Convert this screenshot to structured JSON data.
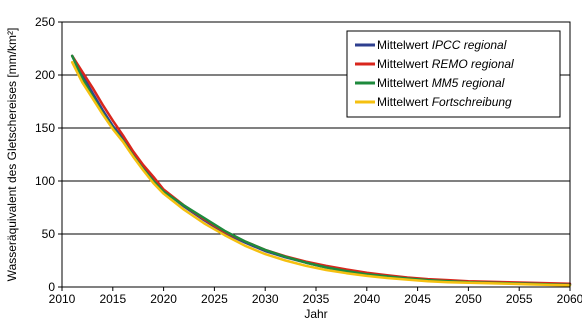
{
  "chart_data": {
    "type": "line",
    "xlabel": "Jahr",
    "ylabel": "Wasseräquivalent des Gletschereises [mm/km²]",
    "xlim": [
      2010,
      2060
    ],
    "ylim": [
      0,
      250
    ],
    "xticks": [
      2010,
      2015,
      2020,
      2025,
      2030,
      2035,
      2040,
      2045,
      2050,
      2055,
      2060
    ],
    "yticks": [
      0,
      50,
      100,
      150,
      200,
      250
    ],
    "grid": "horizontal",
    "legend": "top-right",
    "series": [
      {
        "name": "Mittelwert",
        "name_italic": "IPCC regional",
        "color": "#2e3f8f",
        "x": [
          2011,
          2012,
          2013,
          2014,
          2015,
          2016,
          2017,
          2018,
          2019,
          2020,
          2022,
          2024,
          2026,
          2028,
          2030,
          2032,
          2034,
          2036,
          2038,
          2040,
          2042,
          2044,
          2046,
          2048,
          2050,
          2052,
          2054,
          2056,
          2058,
          2060
        ],
        "y": [
          218,
          200,
          183,
          167,
          152,
          140,
          126,
          113,
          101,
          91,
          76,
          63,
          51,
          42,
          34,
          28,
          23,
          18.5,
          15,
          12,
          10,
          8.5,
          7,
          6,
          5,
          4.5,
          4,
          3.5,
          3,
          2.5
        ]
      },
      {
        "name": "Mittelwert",
        "name_italic": "REMO regional",
        "color": "#d9261c",
        "x": [
          2011,
          2012,
          2013,
          2014,
          2015,
          2016,
          2017,
          2018,
          2019,
          2020,
          2022,
          2024,
          2026,
          2028,
          2030,
          2032,
          2034,
          2036,
          2038,
          2040,
          2042,
          2044,
          2046,
          2048,
          2050,
          2052,
          2054,
          2056,
          2058,
          2060
        ],
        "y": [
          218,
          203,
          188,
          172,
          157,
          143,
          128,
          115,
          104,
          92,
          77,
          64,
          52,
          43,
          35,
          29,
          24,
          20,
          16.5,
          13.5,
          11,
          9,
          7.5,
          6.5,
          5.5,
          5,
          4.5,
          4,
          3.5,
          3
        ]
      },
      {
        "name": "Mittelwert",
        "name_italic": "MM5 regional",
        "color": "#1e8a3c",
        "x": [
          2011,
          2012,
          2013,
          2014,
          2015,
          2016,
          2017,
          2018,
          2019,
          2020,
          2022,
          2024,
          2026,
          2028,
          2030,
          2032,
          2034,
          2036,
          2038,
          2040,
          2042,
          2044,
          2046,
          2048,
          2050,
          2052,
          2054,
          2056,
          2058,
          2060
        ],
        "y": [
          218,
          197,
          180,
          164,
          150,
          138,
          124,
          111,
          100,
          90,
          77,
          65,
          53,
          43,
          35,
          28.5,
          23,
          18.5,
          15,
          12,
          10,
          8,
          6.5,
          5.5,
          4.5,
          4,
          3.5,
          3,
          2.5,
          2
        ]
      },
      {
        "name": "Mittelwert",
        "name_italic": "Fortschreibung",
        "color": "#f5c010",
        "x": [
          2011,
          2012,
          2013,
          2014,
          2015,
          2016,
          2017,
          2018,
          2019,
          2020,
          2022,
          2024,
          2026,
          2028,
          2030,
          2032,
          2034,
          2036,
          2038,
          2040,
          2042,
          2044,
          2046,
          2048,
          2050,
          2052,
          2054,
          2056,
          2058,
          2060
        ],
        "y": [
          212,
          193,
          178,
          163,
          149,
          137,
          123,
          110,
          98,
          88,
          73,
          60,
          49,
          39,
          31,
          25,
          20,
          16,
          13,
          10.5,
          8.5,
          7,
          5.5,
          4.5,
          4,
          3.5,
          3,
          2.5,
          2,
          1.5
        ]
      }
    ]
  }
}
